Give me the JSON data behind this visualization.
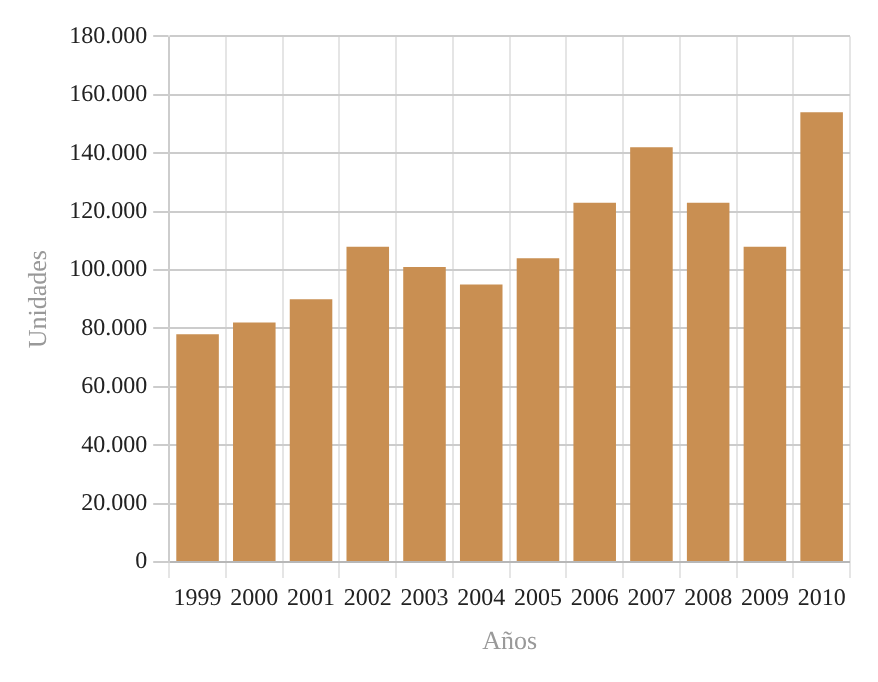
{
  "chart_data": {
    "type": "bar",
    "xlabel": "Años",
    "ylabel": "Unidades",
    "categories": [
      "1999",
      "2000",
      "2001",
      "2002",
      "2003",
      "2004",
      "2005",
      "2006",
      "2007",
      "2008",
      "2009",
      "2010"
    ],
    "values": [
      78000,
      82000,
      90000,
      108000,
      101000,
      95000,
      104000,
      123000,
      142000,
      123000,
      108000,
      154000
    ],
    "color": "#c98f52",
    "ylim": [
      0,
      180000
    ],
    "yticks": [
      {
        "value": 0,
        "label": "0"
      },
      {
        "value": 20000,
        "label": "20.000"
      },
      {
        "value": 40000,
        "label": "40.000"
      },
      {
        "value": 60000,
        "label": "60.000"
      },
      {
        "value": 80000,
        "label": "80.000"
      },
      {
        "value": 100000,
        "label": "100.000"
      },
      {
        "value": 120000,
        "label": "120.000"
      },
      {
        "value": 140000,
        "label": "140.000"
      },
      {
        "value": 160000,
        "label": "160.000"
      },
      {
        "value": 180000,
        "label": "180.000"
      }
    ],
    "grid": true,
    "legend": false
  }
}
